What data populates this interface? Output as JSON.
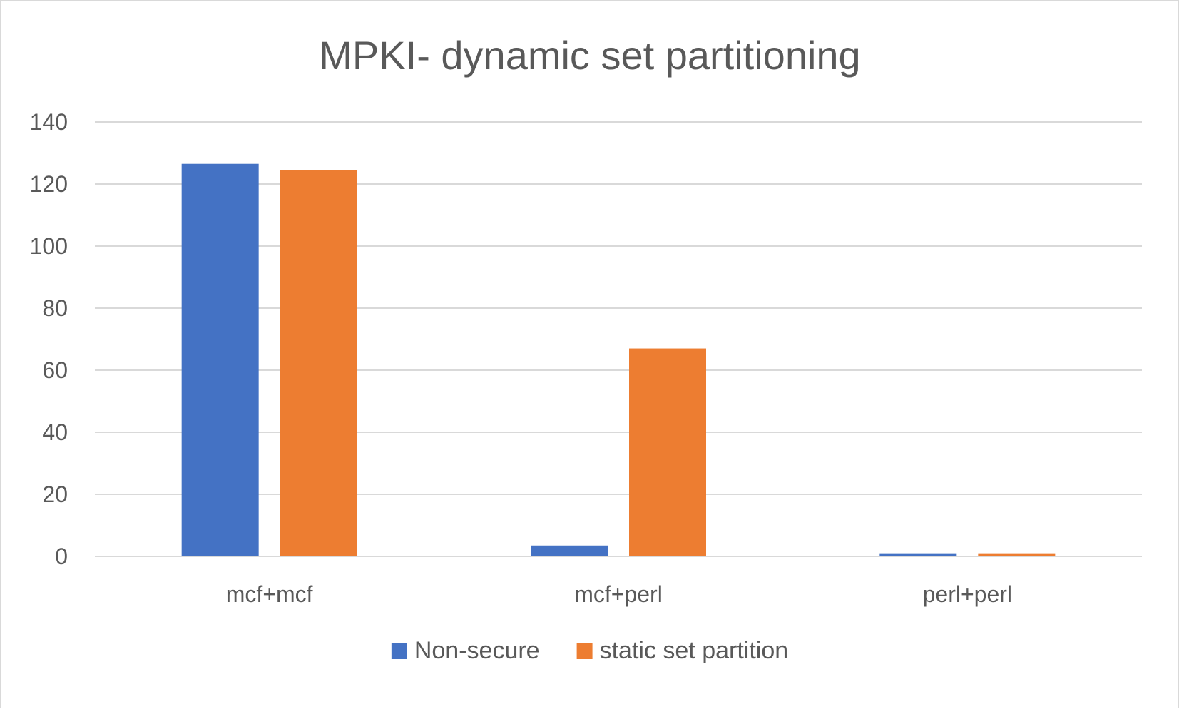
{
  "chart_data": {
    "type": "bar",
    "title": "MPKI- dynamic set partitioning",
    "xlabel": "",
    "ylabel": "",
    "categories": [
      "mcf+mcf",
      "mcf+perl",
      "perl+perl"
    ],
    "series": [
      {
        "name": "Non-secure",
        "color": "#4472c4",
        "values": [
          126.5,
          3.5,
          1
        ]
      },
      {
        "name": "static set partition",
        "color": "#ed7d31",
        "values": [
          124.5,
          67,
          1
        ]
      }
    ],
    "ylim": [
      0,
      140
    ],
    "yticks": [
      "0",
      "20",
      "40",
      "60",
      "80",
      "100",
      "120",
      "140"
    ],
    "grid": true,
    "legend_position": "bottom"
  }
}
